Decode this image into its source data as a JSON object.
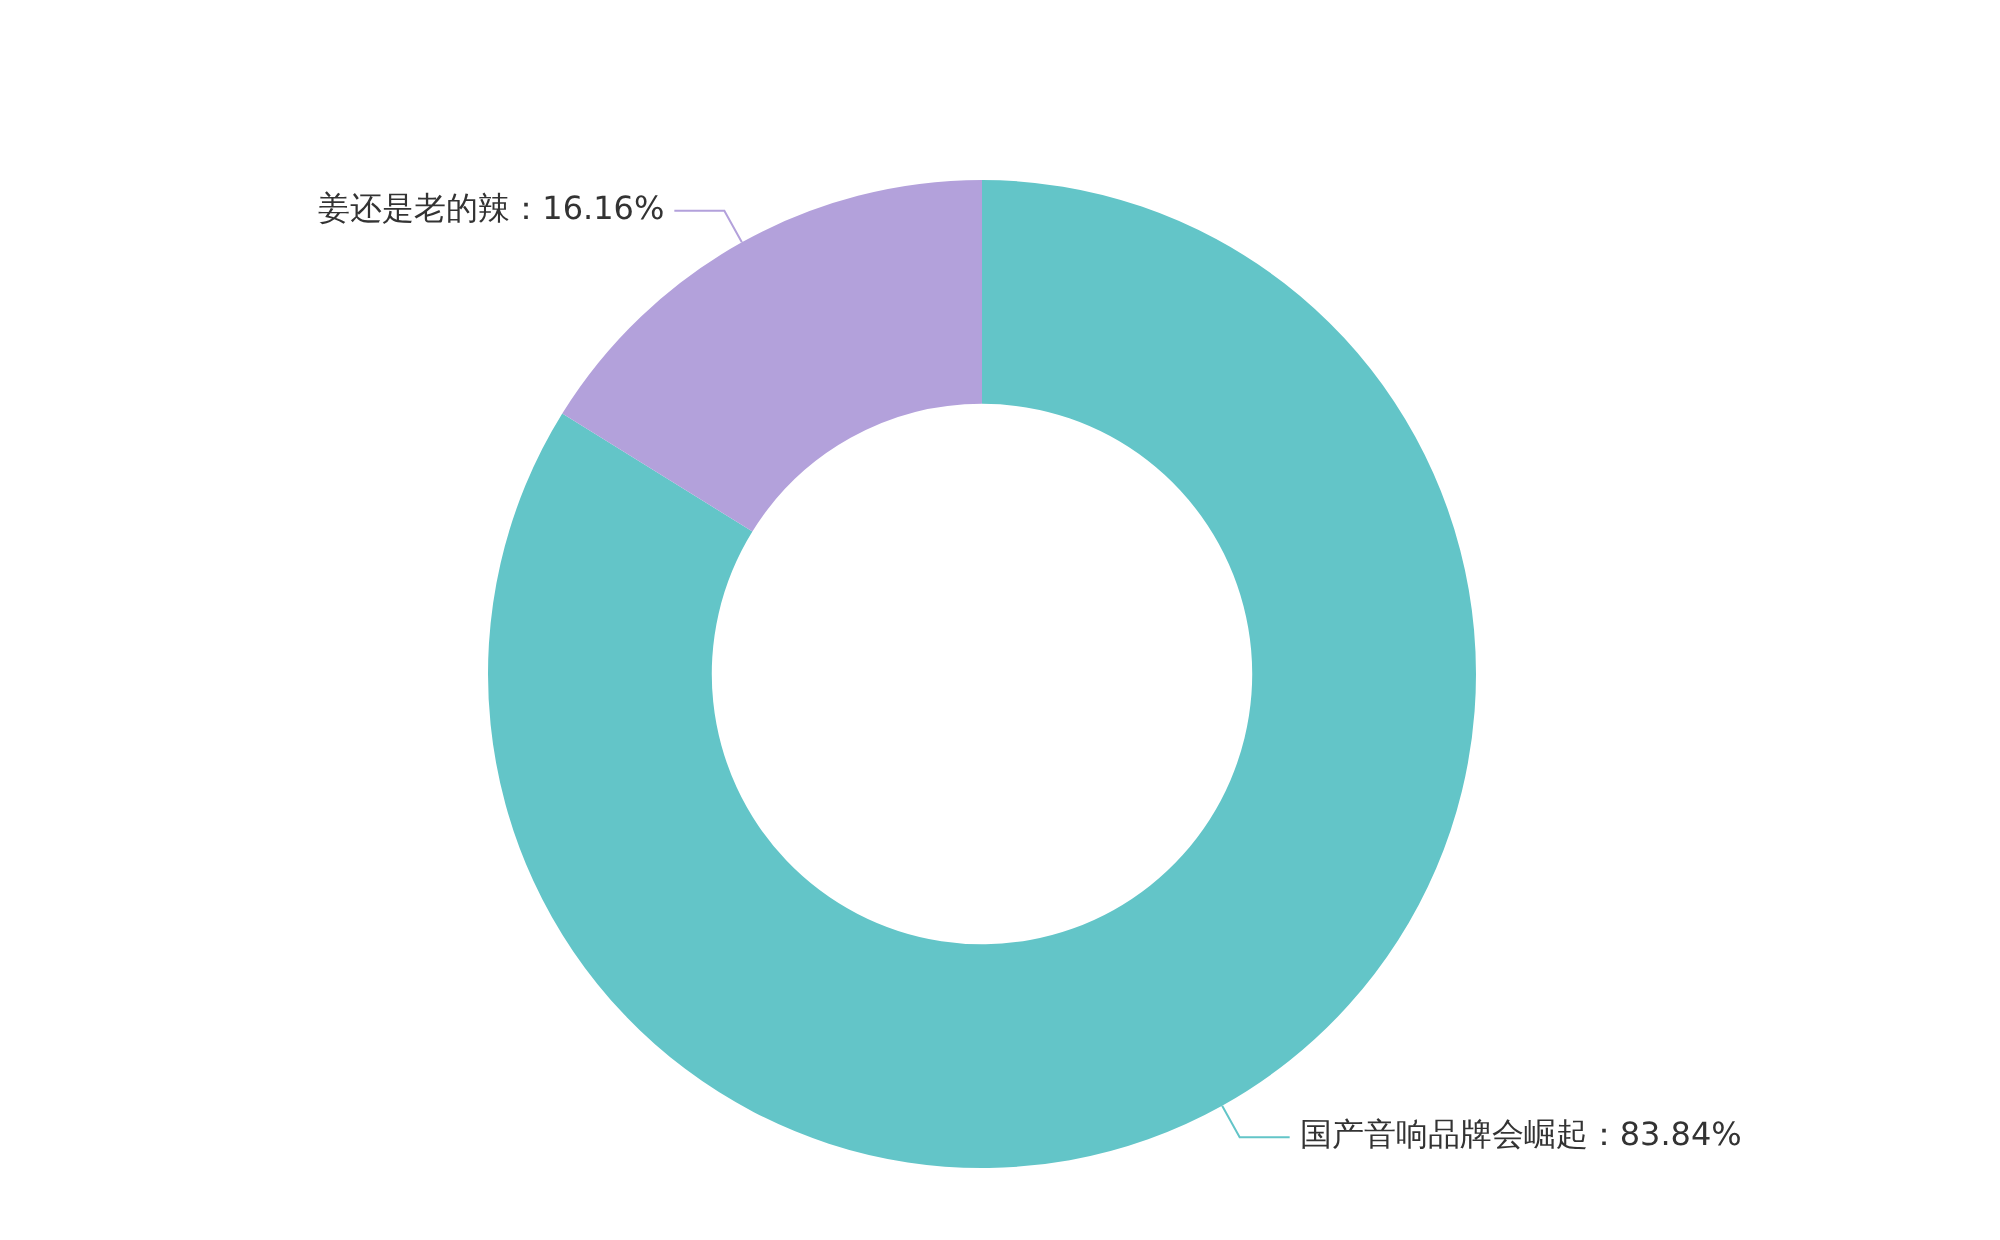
{
  "chart_data": {
    "type": "donut",
    "categories": [
      "国产音响品牌会崛起",
      "姜还是老的辣"
    ],
    "values": [
      83.84,
      16.16
    ],
    "colors": [
      "#63c5c8",
      "#b3a1db"
    ],
    "value_labels": [
      "83.84%",
      "16.16%"
    ]
  }
}
